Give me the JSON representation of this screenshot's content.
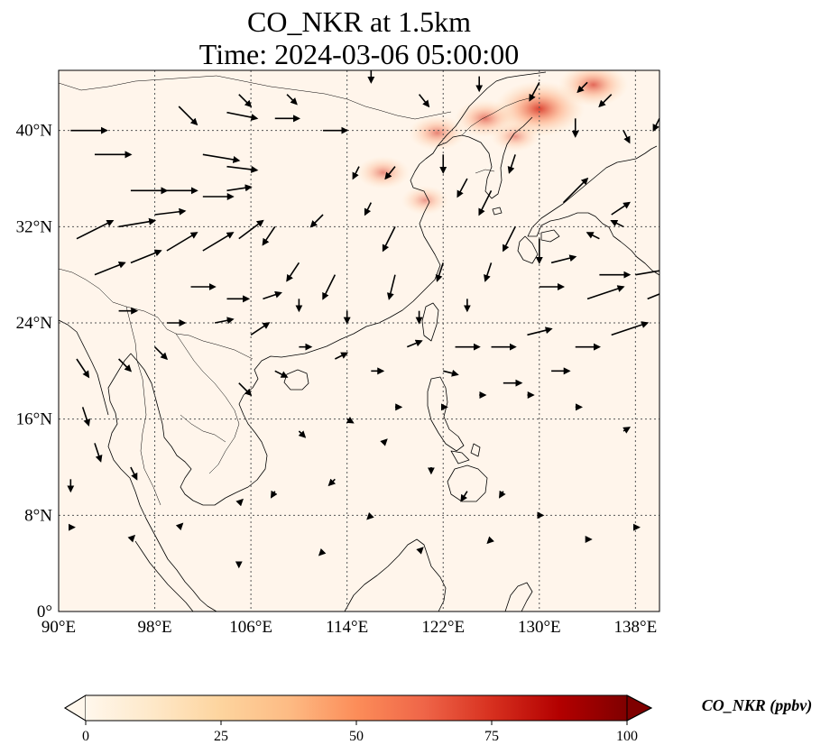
{
  "title": {
    "line1": "CO_NKR at 1.5km",
    "line2": "Time: 2024-03-06 05:00:00"
  },
  "map": {
    "variable": "CO_NKR",
    "level": "1.5km",
    "lon_range": [
      90,
      140
    ],
    "lat_range": [
      0,
      45
    ],
    "lon_ticks": [
      {
        "value": 90,
        "label": "90°E"
      },
      {
        "value": 98,
        "label": "98°E"
      },
      {
        "value": 106,
        "label": "106°E"
      },
      {
        "value": 114,
        "label": "114°E"
      },
      {
        "value": 122,
        "label": "122°E"
      },
      {
        "value": 130,
        "label": "130°E"
      },
      {
        "value": 138,
        "label": "138°E"
      }
    ],
    "lat_ticks": [
      {
        "value": 0,
        "label": "0°"
      },
      {
        "value": 8,
        "label": "8°N"
      },
      {
        "value": 16,
        "label": "16°N"
      },
      {
        "value": 24,
        "label": "24°N"
      },
      {
        "value": 32,
        "label": "32°N"
      },
      {
        "value": 40,
        "label": "40°N"
      }
    ],
    "gridlines": true,
    "background_color": "#fff5eb",
    "coastline_color": "#000000",
    "vector_color": "#000000",
    "concentration_hotspots": [
      {
        "lon": 130.0,
        "lat": 41.8,
        "value": 70
      },
      {
        "lon": 134.5,
        "lat": 43.8,
        "value": 45
      },
      {
        "lon": 125.5,
        "lat": 41.0,
        "value": 35
      },
      {
        "lon": 121.5,
        "lat": 39.8,
        "value": 30
      },
      {
        "lon": 117.0,
        "lat": 36.5,
        "value": 25
      },
      {
        "lon": 120.5,
        "lat": 34.2,
        "value": 18
      },
      {
        "lon": 128.0,
        "lat": 39.5,
        "value": 20
      }
    ]
  },
  "colorbar": {
    "label": "CO_NKR (ppbv)",
    "min": 0,
    "max": 100,
    "ticks": [
      "0",
      "25",
      "50",
      "75",
      "100"
    ],
    "extend": "both",
    "colormap": "OrRd",
    "colors": [
      "#fff7ec",
      "#fee8c8",
      "#fdd49e",
      "#fdbb84",
      "#fc8d59",
      "#ef6548",
      "#d7301f",
      "#b30000",
      "#7f0000"
    ]
  },
  "wind_vectors": [
    [
      91,
      40,
      3,
      0
    ],
    [
      93,
      38,
      3,
      0
    ],
    [
      96,
      35,
      3,
      0
    ],
    [
      99,
      35,
      2.5,
      0
    ],
    [
      102,
      34.5,
      2.5,
      0
    ],
    [
      104,
      35,
      2,
      0.3
    ],
    [
      91.5,
      31,
      3,
      1.5
    ],
    [
      95,
      32,
      3,
      0.5
    ],
    [
      98,
      33,
      2.5,
      0.3
    ],
    [
      93,
      28,
      2.5,
      1
    ],
    [
      96,
      29,
      2.5,
      1
    ],
    [
      99,
      30,
      2.5,
      1.5
    ],
    [
      102,
      30,
      2.5,
      1.5
    ],
    [
      105,
      31,
      2,
      1.5
    ],
    [
      101,
      27,
      2,
      0
    ],
    [
      104,
      26,
      1.8,
      0
    ],
    [
      107,
      26,
      1.5,
      0.5
    ],
    [
      95,
      25,
      1.5,
      0
    ],
    [
      99,
      24,
      1.5,
      0
    ],
    [
      103,
      24,
      1.5,
      0.3
    ],
    [
      106,
      23,
      1.5,
      1
    ],
    [
      102,
      38,
      3,
      -0.5
    ],
    [
      104,
      37,
      2.5,
      -0.3
    ],
    [
      104,
      41.5,
      2.5,
      -0.5
    ],
    [
      108,
      41,
      2,
      0
    ],
    [
      112,
      40,
      2,
      0
    ],
    [
      100,
      42,
      1.5,
      -1.5
    ],
    [
      105,
      43,
      1,
      -1
    ],
    [
      109,
      43,
      0.8,
      -0.8
    ],
    [
      116,
      45,
      0,
      -1
    ],
    [
      120,
      43,
      0.8,
      -1
    ],
    [
      125,
      44.5,
      0,
      -1.2
    ],
    [
      130,
      44,
      -0.8,
      -1.5
    ],
    [
      134,
      44,
      -0.8,
      -0.8
    ],
    [
      136,
      43,
      -1,
      -1
    ],
    [
      133,
      41,
      0,
      -1.5
    ],
    [
      137,
      40,
      0.5,
      -1
    ],
    [
      140,
      41,
      -0.5,
      -1
    ],
    [
      128,
      38,
      -0.5,
      -1.5
    ],
    [
      122,
      38,
      0,
      -1.5
    ],
    [
      118,
      37,
      -0.8,
      -1
    ],
    [
      115,
      37,
      -0.5,
      -1
    ],
    [
      126,
      35,
      -1,
      -2
    ],
    [
      132,
      34,
      2,
      2
    ],
    [
      136,
      33,
      1.5,
      1
    ],
    [
      137,
      32,
      -1,
      0.5
    ],
    [
      135,
      31,
      -1,
      0.5
    ],
    [
      140,
      30,
      2.5,
      0
    ],
    [
      131,
      29,
      2,
      0.5
    ],
    [
      135,
      28,
      2.5,
      0
    ],
    [
      138,
      28,
      3,
      0.5
    ],
    [
      139,
      26,
      2.5,
      1
    ],
    [
      134,
      26,
      3,
      1
    ],
    [
      130,
      27,
      2,
      0
    ],
    [
      136,
      23,
      3,
      1
    ],
    [
      129,
      23,
      2,
      0.5
    ],
    [
      126,
      22,
      2,
      0
    ],
    [
      123,
      22,
      2,
      0
    ],
    [
      133,
      22,
      2,
      0
    ],
    [
      131,
      20,
      1.5,
      0
    ],
    [
      127,
      19,
      1.5,
      0
    ],
    [
      122,
      20,
      1.2,
      -0.3
    ],
    [
      119,
      22,
      1.2,
      0.5
    ],
    [
      116,
      20,
      1,
      0
    ],
    [
      113,
      21,
      1,
      0.5
    ],
    [
      110,
      22,
      1,
      0
    ],
    [
      108,
      20,
      1,
      -0.5
    ],
    [
      105,
      19,
      1,
      -1
    ],
    [
      98,
      22,
      1,
      -1
    ],
    [
      95,
      21,
      1,
      -1
    ],
    [
      91.5,
      21,
      1,
      -1.5
    ],
    [
      92,
      17,
      0.5,
      -1.5
    ],
    [
      93,
      14,
      0.5,
      -1.5
    ],
    [
      91,
      11,
      0,
      -1
    ],
    [
      96,
      12,
      0.5,
      -1
    ],
    [
      110,
      15,
      0.5,
      -0.5
    ],
    [
      114,
      16,
      0.5,
      -0.3
    ],
    [
      118,
      17,
      0.5,
      0
    ],
    [
      122,
      17,
      0.3,
      0
    ],
    [
      125,
      18,
      0.5,
      0
    ],
    [
      129,
      18,
      0.5,
      0
    ],
    [
      133,
      17,
      0.5,
      0
    ],
    [
      137,
      15,
      0.5,
      0.3
    ],
    [
      118,
      28,
      -0.5,
      -2
    ],
    [
      122,
      29,
      -0.5,
      -1.5
    ],
    [
      126,
      29,
      -0.5,
      -1.5
    ],
    [
      130,
      31,
      0,
      -2
    ],
    [
      118,
      32,
      -1,
      -2
    ],
    [
      113,
      28,
      -1,
      -2
    ],
    [
      110,
      29,
      -1,
      -1.5
    ],
    [
      108,
      32,
      -1,
      -1.5
    ],
    [
      112,
      33,
      -1,
      -1
    ],
    [
      116,
      34,
      -0.5,
      -1
    ],
    [
      124,
      36,
      -0.8,
      -1.5
    ],
    [
      128,
      32,
      -1,
      -2
    ],
    [
      124,
      26,
      0,
      -1
    ],
    [
      114,
      25,
      0,
      -1
    ],
    [
      110,
      26,
      0,
      -1
    ],
    [
      120,
      25,
      0,
      -1
    ],
    [
      117,
      14,
      0.3,
      0.3
    ],
    [
      121,
      12,
      0,
      -0.5
    ],
    [
      124,
      10,
      -0.5,
      -0.8
    ],
    [
      127,
      10,
      -0.3,
      -0.5
    ],
    [
      113,
      11,
      -0.5,
      -0.5
    ],
    [
      108,
      10,
      -0.3,
      -0.5
    ],
    [
      105,
      9,
      0.3,
      0.3
    ],
    [
      100,
      7,
      0.3,
      0.3
    ],
    [
      96,
      6,
      0.3,
      0.3
    ],
    [
      91,
      7,
      0.3,
      0
    ],
    [
      120,
      5,
      0.3,
      0.3
    ],
    [
      126,
      6,
      -0.3,
      -0.3
    ],
    [
      130,
      8,
      0.3,
      0
    ],
    [
      134,
      6,
      0.3,
      0
    ],
    [
      138,
      7,
      0.3,
      0
    ],
    [
      116,
      8,
      -0.3,
      -0.3
    ],
    [
      112,
      5,
      -0.3,
      -0.3
    ],
    [
      105,
      4,
      0,
      -0.3
    ]
  ]
}
